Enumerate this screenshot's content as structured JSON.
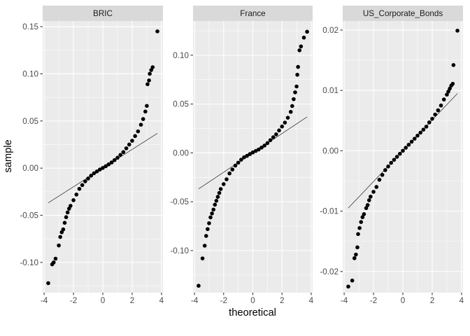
{
  "chart_data": {
    "type": "scatter",
    "xlabel": "theoretical",
    "ylabel": "sample",
    "x_ticks": [
      -4,
      -2,
      0,
      2,
      4
    ],
    "x_tick_labels": [
      "-4",
      "-2",
      "0",
      "2",
      "4"
    ],
    "xlim": [
      -4.1,
      4.1
    ],
    "grid": true,
    "legend": "none",
    "point_color": "#000000",
    "panel_background": "#ebebeb",
    "strip_background": "#d9d9d9",
    "panels": [
      {
        "title": "BRIC",
        "ylim": [
          -0.132,
          0.156
        ],
        "y_ticks": [
          -0.1,
          -0.05,
          0.0,
          0.05,
          0.1,
          0.15
        ],
        "y_tick_labels": [
          "-0.10",
          "-0.05",
          "0.00",
          "0.05",
          "0.10",
          "0.15"
        ],
        "ref_line": {
          "intercept": 0.0,
          "slope": 0.0099
        },
        "points": [
          [
            -3.72,
            -0.122
          ],
          [
            -3.45,
            -0.102
          ],
          [
            -3.35,
            -0.1
          ],
          [
            -3.22,
            -0.096
          ],
          [
            -3.0,
            -0.082
          ],
          [
            -2.9,
            -0.073
          ],
          [
            -2.8,
            -0.068
          ],
          [
            -2.7,
            -0.065
          ],
          [
            -2.6,
            -0.058
          ],
          [
            -2.5,
            -0.052
          ],
          [
            -2.4,
            -0.047
          ],
          [
            -2.3,
            -0.043
          ],
          [
            -2.2,
            -0.04
          ],
          [
            -2.0,
            -0.034
          ],
          [
            -1.8,
            -0.028
          ],
          [
            -1.6,
            -0.022
          ],
          [
            -1.4,
            -0.018
          ],
          [
            -1.2,
            -0.014
          ],
          [
            -1.0,
            -0.011
          ],
          [
            -0.8,
            -0.008
          ],
          [
            -0.6,
            -0.0055
          ],
          [
            -0.4,
            -0.0035
          ],
          [
            -0.2,
            -0.0015
          ],
          [
            0.0,
            0.0002
          ],
          [
            0.2,
            0.002
          ],
          [
            0.4,
            0.004
          ],
          [
            0.6,
            0.006
          ],
          [
            0.8,
            0.0085
          ],
          [
            1.0,
            0.011
          ],
          [
            1.2,
            0.014
          ],
          [
            1.4,
            0.017
          ],
          [
            1.6,
            0.021
          ],
          [
            1.8,
            0.025
          ],
          [
            2.0,
            0.029
          ],
          [
            2.2,
            0.034
          ],
          [
            2.4,
            0.039
          ],
          [
            2.6,
            0.046
          ],
          [
            2.75,
            0.052
          ],
          [
            2.9,
            0.06
          ],
          [
            3.0,
            0.066
          ],
          [
            3.05,
            0.089
          ],
          [
            3.15,
            0.093
          ],
          [
            3.2,
            0.1
          ],
          [
            3.3,
            0.104
          ],
          [
            3.4,
            0.107
          ],
          [
            3.72,
            0.145
          ]
        ]
      },
      {
        "title": "France",
        "ylim": [
          -0.143,
          0.135
        ],
        "y_ticks": [
          -0.1,
          -0.05,
          0.0,
          0.05,
          0.1
        ],
        "y_tick_labels": [
          "-0.10",
          "-0.05",
          "0.00",
          "0.05",
          "0.10"
        ],
        "ref_line": {
          "intercept": 0.0,
          "slope": 0.0099
        },
        "points": [
          [
            -3.72,
            -0.136
          ],
          [
            -3.45,
            -0.108
          ],
          [
            -3.3,
            -0.095
          ],
          [
            -3.2,
            -0.085
          ],
          [
            -3.1,
            -0.078
          ],
          [
            -3.0,
            -0.072
          ],
          [
            -2.9,
            -0.066
          ],
          [
            -2.8,
            -0.062
          ],
          [
            -2.7,
            -0.058
          ],
          [
            -2.6,
            -0.053
          ],
          [
            -2.5,
            -0.049
          ],
          [
            -2.4,
            -0.045
          ],
          [
            -2.3,
            -0.041
          ],
          [
            -2.2,
            -0.037
          ],
          [
            -2.0,
            -0.032
          ],
          [
            -1.8,
            -0.027
          ],
          [
            -1.6,
            -0.021
          ],
          [
            -1.4,
            -0.017
          ],
          [
            -1.2,
            -0.013
          ],
          [
            -1.0,
            -0.01
          ],
          [
            -0.8,
            -0.007
          ],
          [
            -0.6,
            -0.0045
          ],
          [
            -0.4,
            -0.003
          ],
          [
            -0.2,
            -0.0012
          ],
          [
            0.0,
            0.0005
          ],
          [
            0.2,
            0.002
          ],
          [
            0.4,
            0.0035
          ],
          [
            0.6,
            0.0055
          ],
          [
            0.8,
            0.0075
          ],
          [
            1.0,
            0.01
          ],
          [
            1.2,
            0.013
          ],
          [
            1.4,
            0.016
          ],
          [
            1.6,
            0.019
          ],
          [
            1.8,
            0.023
          ],
          [
            2.0,
            0.027
          ],
          [
            2.2,
            0.031
          ],
          [
            2.4,
            0.036
          ],
          [
            2.6,
            0.042
          ],
          [
            2.7,
            0.048
          ],
          [
            2.8,
            0.055
          ],
          [
            2.9,
            0.062
          ],
          [
            3.0,
            0.068
          ],
          [
            3.05,
            0.08
          ],
          [
            3.1,
            0.088
          ],
          [
            3.2,
            0.105
          ],
          [
            3.3,
            0.109
          ],
          [
            3.5,
            0.118
          ],
          [
            3.72,
            0.124
          ]
        ]
      },
      {
        "title": "US_Corporate_Bonds",
        "ylim": [
          -0.0235,
          0.0215
        ],
        "y_ticks": [
          -0.02,
          -0.01,
          0.0,
          0.01,
          0.02
        ],
        "y_tick_labels": [
          "-0.02",
          "-0.01",
          "0.00",
          "0.01",
          "0.02"
        ],
        "ref_line": {
          "intercept": 0.0,
          "slope": 0.00255
        },
        "points": [
          [
            -3.72,
            -0.0225
          ],
          [
            -3.45,
            -0.0215
          ],
          [
            -3.3,
            -0.0178
          ],
          [
            -3.2,
            -0.0172
          ],
          [
            -3.1,
            -0.016
          ],
          [
            -3.05,
            -0.0138
          ],
          [
            -2.95,
            -0.0128
          ],
          [
            -2.85,
            -0.0118
          ],
          [
            -2.75,
            -0.011
          ],
          [
            -2.65,
            -0.0105
          ],
          [
            -2.5,
            -0.0095
          ],
          [
            -2.4,
            -0.009
          ],
          [
            -2.3,
            -0.0082
          ],
          [
            -2.2,
            -0.0076
          ],
          [
            -2.0,
            -0.0068
          ],
          [
            -1.8,
            -0.006
          ],
          [
            -1.6,
            -0.0048
          ],
          [
            -1.4,
            -0.004
          ],
          [
            -1.2,
            -0.0032
          ],
          [
            -1.0,
            -0.0026
          ],
          [
            -0.8,
            -0.002
          ],
          [
            -0.6,
            -0.0015
          ],
          [
            -0.4,
            -0.001
          ],
          [
            -0.2,
            -0.0005
          ],
          [
            0.0,
            0.0
          ],
          [
            0.2,
            0.0005
          ],
          [
            0.4,
            0.001
          ],
          [
            0.6,
            0.0015
          ],
          [
            0.8,
            0.002
          ],
          [
            1.0,
            0.0025
          ],
          [
            1.2,
            0.003
          ],
          [
            1.4,
            0.0035
          ],
          [
            1.6,
            0.004
          ],
          [
            1.8,
            0.0047
          ],
          [
            2.0,
            0.0053
          ],
          [
            2.2,
            0.006
          ],
          [
            2.4,
            0.0067
          ],
          [
            2.6,
            0.0075
          ],
          [
            2.8,
            0.0085
          ],
          [
            3.0,
            0.0093
          ],
          [
            3.1,
            0.0098
          ],
          [
            3.2,
            0.0103
          ],
          [
            3.3,
            0.0108
          ],
          [
            3.4,
            0.0111
          ],
          [
            3.45,
            0.0142
          ],
          [
            3.72,
            0.0199
          ]
        ]
      }
    ]
  }
}
